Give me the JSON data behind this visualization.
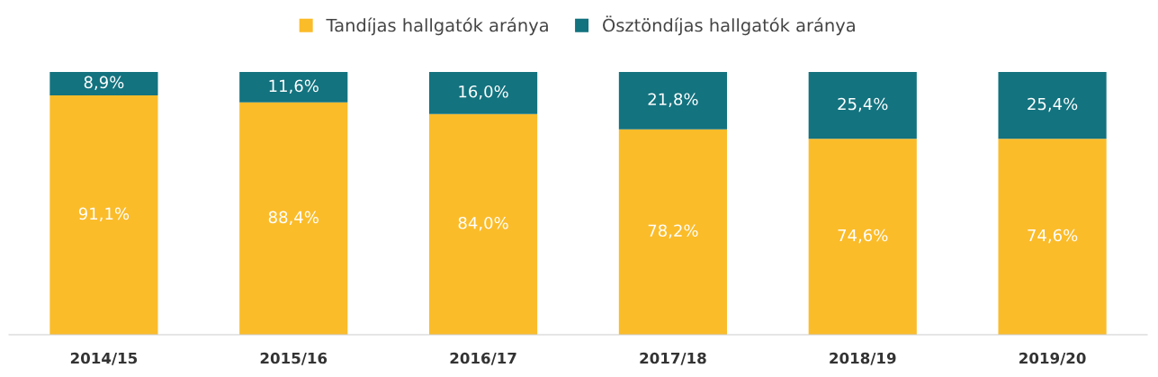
{
  "chart_data": {
    "type": "bar",
    "stacked": true,
    "categories": [
      "2014/15",
      "2015/16",
      "2016/17",
      "2017/18",
      "2018/19",
      "2019/20"
    ],
    "series": [
      {
        "name": "Tandíjas hallgatók aránya",
        "color": "#fbbc2a",
        "values": [
          91.1,
          88.4,
          84.0,
          78.2,
          74.6,
          74.6
        ],
        "value_labels": [
          "91,1%",
          "88,4%",
          "84,0%",
          "78,2%",
          "74,6%",
          "74,6%"
        ]
      },
      {
        "name": "Ösztöndíjas hallgatók aránya",
        "color": "#13737f",
        "values": [
          8.9,
          11.6,
          16.0,
          21.8,
          25.4,
          25.4
        ],
        "value_labels": [
          "8,9%",
          "11,6%",
          "16,0%",
          "21,8%",
          "25,4%",
          "25,4%"
        ]
      }
    ],
    "ylim": [
      0,
      100
    ],
    "tick_labels": "x",
    "grid": false,
    "legend": "top"
  }
}
